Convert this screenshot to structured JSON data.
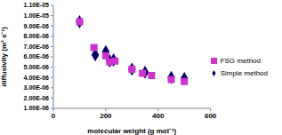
{
  "chart_data": {
    "type": "scatter",
    "x_label": "molecular weight (g mol⁻¹)",
    "y_label": "diffusivity (m² s⁻¹)",
    "xlim": [
      0,
      600
    ],
    "xticks": [
      0,
      200,
      400,
      600
    ],
    "ylim": [
      1e-06,
      1.1e-05
    ],
    "yticks": [
      {
        "value": 1e-06,
        "label": "1.00E-06"
      },
      {
        "value": 2e-06,
        "label": "2.00E-06"
      },
      {
        "value": 3e-06,
        "label": "3.00E-06"
      },
      {
        "value": 4e-06,
        "label": "4.00E-06"
      },
      {
        "value": 5e-06,
        "label": "5.00E-06"
      },
      {
        "value": 6e-06,
        "label": "6.00E-06"
      },
      {
        "value": 7e-06,
        "label": "7.00E-06"
      },
      {
        "value": 8e-06,
        "label": "8.00E-06"
      },
      {
        "value": 9e-06,
        "label": "9.00E-06"
      },
      {
        "value": 1e-05,
        "label": "1.00E-05"
      },
      {
        "value": 1.1e-05,
        "label": "1.10E-05"
      }
    ],
    "grid": false,
    "legend": "right",
    "series": [
      {
        "name": "Simple method",
        "color": "#000066",
        "marker": "diamond",
        "x": [
          100,
          160,
          200,
          215,
          230,
          300,
          350,
          450,
          500
        ],
        "values": [
          9.4e-06,
          6.2e-06,
          6.5e-06,
          5.6e-06,
          5.7e-06,
          4.8e-06,
          4.5e-06,
          4e-06,
          3.9e-06
        ]
      },
      {
        "name": "FSG method",
        "color": "#cc33cc",
        "marker": "square",
        "x": [
          100,
          155,
          200,
          215,
          235,
          300,
          340,
          375,
          450,
          500
        ],
        "values": [
          9.4e-06,
          6.9e-06,
          6.1e-06,
          5.5e-06,
          5.6e-06,
          4.8e-06,
          4.4e-06,
          4.2e-06,
          3.8e-06,
          3.6e-06
        ]
      }
    ]
  }
}
